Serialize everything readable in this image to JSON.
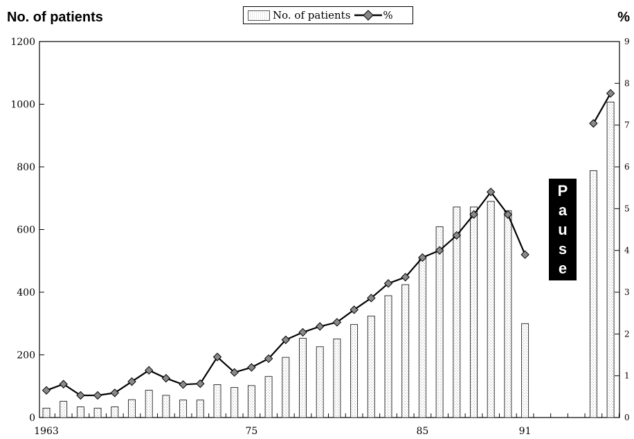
{
  "chart_data": {
    "type": "bar+line",
    "left_axis_title": "No. of patients",
    "right_axis_title": "%",
    "legend": {
      "bar_label": "No. of patients",
      "line_label": "%"
    },
    "annotation": "Pause",
    "annotation_letters": [
      "P",
      "a",
      "u",
      "s",
      "e"
    ],
    "ylim_left": [
      0,
      1200
    ],
    "ylim_right": [
      0,
      9
    ],
    "yticks_left": [
      "0",
      "200",
      "400",
      "600",
      "800",
      "1000",
      "1200"
    ],
    "yticks_right": [
      "0",
      "1",
      "2",
      "3",
      "4",
      "5",
      "6",
      "7",
      "8",
      "9"
    ],
    "xlim": [
      1963,
      1996
    ],
    "xtick_labels": [
      {
        "year": 1963,
        "label": "1963"
      },
      {
        "year": 1975,
        "label": "75"
      },
      {
        "year": 1985,
        "label": "85"
      },
      {
        "year": 1991,
        "label": "91"
      }
    ],
    "years": [
      1963,
      1964,
      1965,
      1966,
      1967,
      1968,
      1969,
      1970,
      1971,
      1972,
      1973,
      1974,
      1975,
      1976,
      1977,
      1978,
      1979,
      1980,
      1981,
      1982,
      1983,
      1984,
      1985,
      1986,
      1987,
      1988,
      1989,
      1990,
      1991,
      1992,
      1993,
      1994,
      1995,
      1996
    ],
    "series": [
      {
        "name": "No. of patients",
        "axis": "left",
        "type": "bar",
        "values": [
          30,
          52,
          34,
          30,
          34,
          57,
          87,
          71,
          56,
          56,
          105,
          96,
          102,
          131,
          192,
          253,
          226,
          251,
          297,
          324,
          389,
          424,
          512,
          609,
          672,
          672,
          690,
          660,
          300,
          null,
          null,
          null,
          788,
          1007
        ]
      },
      {
        "name": "%",
        "axis": "right",
        "type": "line",
        "values": [
          0.65,
          0.8,
          0.53,
          0.53,
          0.59,
          0.86,
          1.13,
          0.94,
          0.79,
          0.81,
          1.45,
          1.08,
          1.2,
          1.41,
          1.86,
          2.04,
          2.18,
          2.28,
          2.58,
          2.86,
          3.21,
          3.36,
          3.83,
          4.0,
          4.36,
          4.86,
          5.4,
          4.86,
          3.9,
          null,
          null,
          null,
          7.04,
          7.76
        ]
      }
    ]
  }
}
